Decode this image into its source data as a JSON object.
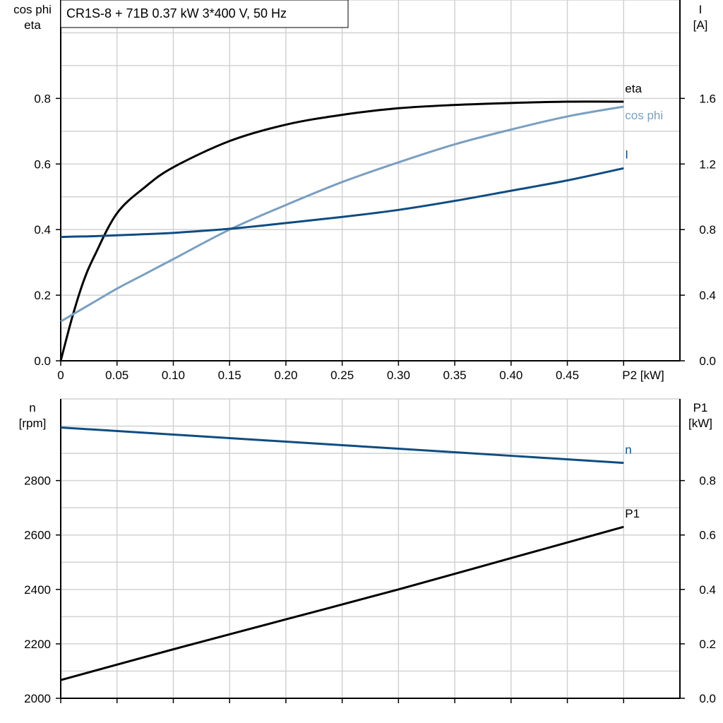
{
  "title": "CR1S-8 + 71B   0.37 kW   3*400 V, 50 Hz",
  "chart_data": [
    {
      "type": "line",
      "x_label": "P2 [kW]",
      "left_axis_title": [
        "cos phi",
        "eta"
      ],
      "right_axis_title": [
        "I",
        "[A]"
      ],
      "xlim": [
        0,
        0.55
      ],
      "ylim_left": [
        0,
        1.1
      ],
      "ylim_right": [
        0,
        2.2
      ],
      "x_ticks": [
        "0",
        "0.05",
        "0.10",
        "0.15",
        "0.20",
        "0.25",
        "0.30",
        "0.35",
        "0.40",
        "0.45"
      ],
      "x_tick_values": [
        0,
        0.05,
        0.1,
        0.15,
        0.2,
        0.25,
        0.3,
        0.35,
        0.4,
        0.45
      ],
      "left_ticks": [
        "0.0",
        "0.2",
        "0.4",
        "0.6",
        "0.8"
      ],
      "right_ticks": [
        "0.0",
        "0.4",
        "0.8",
        "1.2",
        "1.6"
      ],
      "grid": true,
      "x": [
        0,
        0.01,
        0.02,
        0.03,
        0.05,
        0.075,
        0.1,
        0.15,
        0.2,
        0.25,
        0.3,
        0.35,
        0.4,
        0.45,
        0.5
      ],
      "series": [
        {
          "name": "eta",
          "axis": "left",
          "color": "#000000",
          "values": [
            0,
            0.13,
            0.24,
            0.32,
            0.45,
            0.53,
            0.59,
            0.67,
            0.72,
            0.75,
            0.77,
            0.78,
            0.786,
            0.79,
            0.79
          ]
        },
        {
          "name": "cos phi",
          "axis": "left",
          "color": "#7a9fc0",
          "values": [
            0.12,
            0.14,
            0.16,
            0.18,
            0.22,
            0.265,
            0.31,
            0.4,
            0.475,
            0.545,
            0.605,
            0.66,
            0.705,
            0.745,
            0.775
          ]
        },
        {
          "name": "I",
          "axis": "right",
          "color": "#0f4c81",
          "values": [
            0.755,
            0.757,
            0.758,
            0.76,
            0.765,
            0.772,
            0.78,
            0.805,
            0.84,
            0.877,
            0.92,
            0.975,
            1.037,
            1.1,
            1.174
          ]
        }
      ]
    },
    {
      "type": "line",
      "left_axis_title": [
        "n",
        "[rpm]"
      ],
      "right_axis_title": [
        "P1",
        "[kW]"
      ],
      "xlim": [
        0,
        0.55
      ],
      "ylim_left": [
        2000,
        3100
      ],
      "ylim_right": [
        0,
        1.1
      ],
      "left_ticks": [
        "2000",
        "2200",
        "2400",
        "2600",
        "2800"
      ],
      "right_ticks": [
        "0.0",
        "0.2",
        "0.4",
        "0.6",
        "0.8"
      ],
      "grid": true,
      "x": [
        0,
        0.1,
        0.2,
        0.3,
        0.4,
        0.5
      ],
      "series": [
        {
          "name": "n",
          "axis": "left",
          "color": "#0f4c81",
          "values": [
            2995,
            2969,
            2943,
            2917,
            2891,
            2865
          ]
        },
        {
          "name": "P1",
          "axis": "right",
          "color": "#000000",
          "values": [
            0.067,
            0.18,
            0.29,
            0.4,
            0.515,
            0.63
          ]
        }
      ]
    }
  ]
}
